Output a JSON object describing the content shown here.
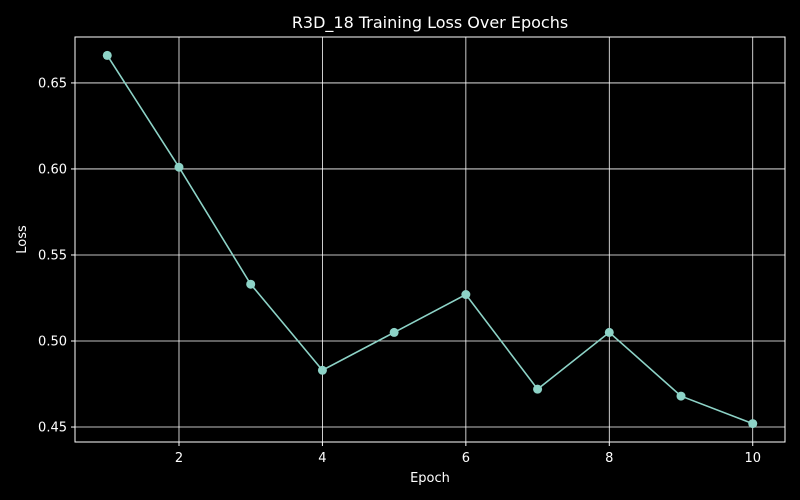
{
  "chart_data": {
    "type": "line",
    "title": "R3D_18 Training Loss Over Epochs",
    "xlabel": "Epoch",
    "ylabel": "Loss",
    "x": [
      1,
      2,
      3,
      4,
      5,
      6,
      7,
      8,
      9,
      10
    ],
    "series": [
      {
        "name": "Training Loss",
        "values": [
          0.666,
          0.601,
          0.533,
          0.483,
          0.505,
          0.527,
          0.472,
          0.505,
          0.468,
          0.452
        ],
        "color": "#8dd3c7",
        "marker": "circle"
      }
    ],
    "xlim": [
      0.55,
      10.45
    ],
    "ylim": [
      0.4413,
      0.6767
    ],
    "xticks": [
      2,
      4,
      6,
      8,
      10
    ],
    "xtick_labels": [
      "2",
      "4",
      "6",
      "8",
      "10"
    ],
    "yticks": [
      0.45,
      0.5,
      0.55,
      0.6,
      0.65
    ],
    "ytick_labels": [
      "0.45",
      "0.50",
      "0.55",
      "0.60",
      "0.65"
    ],
    "grid": true,
    "background": "#000000",
    "foreground": "#ffffff"
  }
}
